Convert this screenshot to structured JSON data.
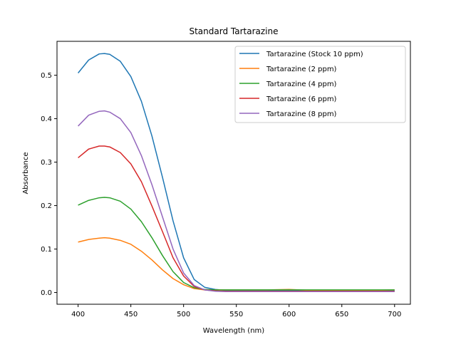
{
  "chart_data": {
    "type": "line",
    "title": "Standard Tartarazine",
    "xlabel": "Wavelength (nm)",
    "ylabel": "Absorbance",
    "xlim": [
      380,
      715
    ],
    "ylim": [
      -0.027,
      0.578
    ],
    "xticks": [
      400,
      450,
      500,
      550,
      600,
      650,
      700
    ],
    "yticks": [
      0.0,
      0.1,
      0.2,
      0.3,
      0.4,
      0.5
    ],
    "xtick_labels": [
      "400",
      "450",
      "500",
      "550",
      "600",
      "650",
      "700"
    ],
    "ytick_labels": [
      "0.0",
      "0.1",
      "0.2",
      "0.3",
      "0.4",
      "0.5"
    ],
    "grid": false,
    "legend_position": "top-right",
    "x": [
      400,
      410,
      420,
      425,
      430,
      440,
      450,
      460,
      470,
      480,
      490,
      500,
      510,
      520,
      530,
      540,
      550,
      560,
      580,
      600,
      620,
      650,
      680,
      700
    ],
    "series": [
      {
        "name": "Tartarazine (Stock 10 ppm)",
        "color": "#1f77b4",
        "values": [
          0.505,
          0.535,
          0.549,
          0.55,
          0.548,
          0.532,
          0.497,
          0.44,
          0.36,
          0.265,
          0.165,
          0.08,
          0.03,
          0.012,
          0.007,
          0.005,
          0.004,
          0.004,
          0.004,
          0.004,
          0.004,
          0.004,
          0.004,
          0.004
        ]
      },
      {
        "name": "Tartarazine (2 ppm)",
        "color": "#ff7f0e",
        "values": [
          0.116,
          0.122,
          0.125,
          0.126,
          0.125,
          0.12,
          0.111,
          0.095,
          0.075,
          0.052,
          0.032,
          0.018,
          0.009,
          0.006,
          0.006,
          0.006,
          0.006,
          0.006,
          0.006,
          0.007,
          0.005,
          0.005,
          0.005,
          0.006
        ]
      },
      {
        "name": "Tartarazine (4 ppm)",
        "color": "#2ca02c",
        "values": [
          0.201,
          0.212,
          0.218,
          0.219,
          0.218,
          0.21,
          0.192,
          0.163,
          0.126,
          0.085,
          0.048,
          0.023,
          0.011,
          0.007,
          0.006,
          0.006,
          0.006,
          0.006,
          0.006,
          0.006,
          0.006,
          0.006,
          0.006,
          0.006
        ]
      },
      {
        "name": "Tartarazine (6 ppm)",
        "color": "#d62728",
        "values": [
          0.31,
          0.33,
          0.337,
          0.337,
          0.335,
          0.322,
          0.296,
          0.255,
          0.199,
          0.14,
          0.08,
          0.038,
          0.014,
          0.006,
          0.004,
          0.003,
          0.003,
          0.003,
          0.003,
          0.003,
          0.003,
          0.003,
          0.003,
          0.003
        ]
      },
      {
        "name": "Tartarazine (8 ppm)",
        "color": "#9467bd",
        "values": [
          0.383,
          0.408,
          0.417,
          0.418,
          0.415,
          0.4,
          0.368,
          0.315,
          0.248,
          0.174,
          0.1,
          0.045,
          0.016,
          0.006,
          0.003,
          0.002,
          0.002,
          0.002,
          0.002,
          0.002,
          0.002,
          0.002,
          0.002,
          0.002
        ]
      }
    ]
  }
}
